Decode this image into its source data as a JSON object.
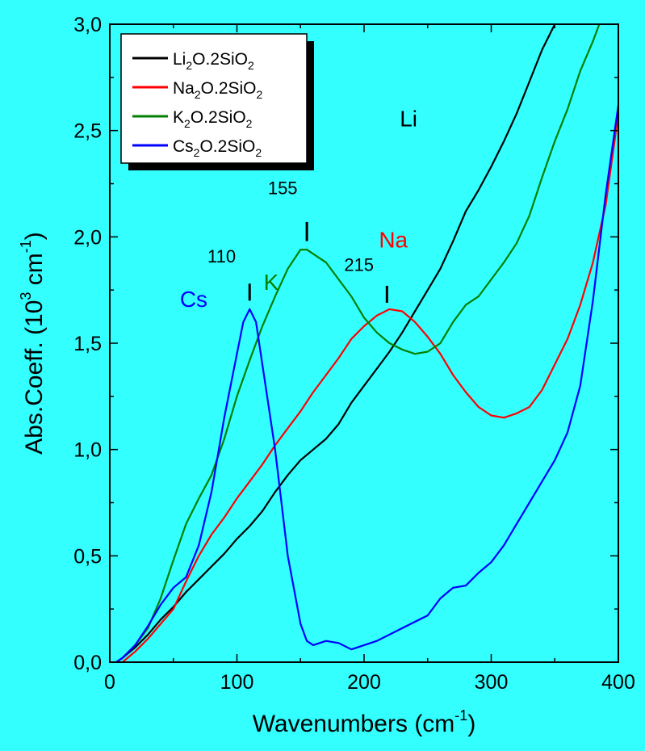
{
  "chart_data": {
    "type": "line",
    "title": "",
    "xlabel": "Wavenumbers (cm",
    "xlabel_sup": "-1",
    "xlabel_end": ")",
    "ylabel": "Abs.Coeff. (10",
    "ylabel_sup1": "3",
    "ylabel_mid": " cm",
    "ylabel_sup2": "-1",
    "ylabel_end": ")",
    "xlim": [
      0,
      400
    ],
    "ylim": [
      0,
      3.0
    ],
    "x_ticks": [
      "0",
      "100",
      "200",
      "300",
      "400"
    ],
    "y_ticks": [
      "0,0",
      "0,5",
      "1,0",
      "1,5",
      "2,0",
      "2,5",
      "3,0"
    ],
    "background_color": "#33ffff",
    "grid": false,
    "legend_position": "top-left",
    "series": [
      {
        "name": "Li2O.2SiO2",
        "legend_parts": [
          "Li",
          "2",
          "O.2SiO",
          "2"
        ],
        "color": "#000000",
        "points": [
          [
            5,
            0.0
          ],
          [
            10,
            0.02
          ],
          [
            20,
            0.07
          ],
          [
            30,
            0.13
          ],
          [
            40,
            0.2
          ],
          [
            50,
            0.26
          ],
          [
            60,
            0.33
          ],
          [
            70,
            0.39
          ],
          [
            80,
            0.45
          ],
          [
            90,
            0.51
          ],
          [
            100,
            0.58
          ],
          [
            110,
            0.64
          ],
          [
            120,
            0.71
          ],
          [
            130,
            0.8
          ],
          [
            140,
            0.88
          ],
          [
            150,
            0.95
          ],
          [
            160,
            1.0
          ],
          [
            170,
            1.05
          ],
          [
            180,
            1.12
          ],
          [
            190,
            1.22
          ],
          [
            200,
            1.3
          ],
          [
            210,
            1.38
          ],
          [
            220,
            1.46
          ],
          [
            230,
            1.55
          ],
          [
            240,
            1.65
          ],
          [
            250,
            1.75
          ],
          [
            260,
            1.85
          ],
          [
            270,
            1.98
          ],
          [
            280,
            2.12
          ],
          [
            290,
            2.22
          ],
          [
            300,
            2.33
          ],
          [
            310,
            2.45
          ],
          [
            320,
            2.58
          ],
          [
            330,
            2.73
          ],
          [
            340,
            2.88
          ],
          [
            350,
            3.0
          ]
        ]
      },
      {
        "name": "Na2O.2SiO2",
        "legend_parts": [
          "Na",
          "2",
          "O.2SiO",
          "2"
        ],
        "color": "#ff0000",
        "points": [
          [
            10,
            0.0
          ],
          [
            20,
            0.05
          ],
          [
            30,
            0.11
          ],
          [
            40,
            0.18
          ],
          [
            50,
            0.25
          ],
          [
            60,
            0.38
          ],
          [
            70,
            0.5
          ],
          [
            80,
            0.6
          ],
          [
            90,
            0.68
          ],
          [
            100,
            0.77
          ],
          [
            110,
            0.85
          ],
          [
            120,
            0.93
          ],
          [
            130,
            1.02
          ],
          [
            140,
            1.1
          ],
          [
            150,
            1.18
          ],
          [
            160,
            1.27
          ],
          [
            170,
            1.35
          ],
          [
            180,
            1.43
          ],
          [
            190,
            1.52
          ],
          [
            200,
            1.58
          ],
          [
            210,
            1.63
          ],
          [
            220,
            1.66
          ],
          [
            230,
            1.65
          ],
          [
            240,
            1.6
          ],
          [
            250,
            1.53
          ],
          [
            260,
            1.45
          ],
          [
            270,
            1.35
          ],
          [
            280,
            1.27
          ],
          [
            290,
            1.2
          ],
          [
            300,
            1.16
          ],
          [
            310,
            1.15
          ],
          [
            320,
            1.17
          ],
          [
            330,
            1.2
          ],
          [
            340,
            1.28
          ],
          [
            350,
            1.4
          ],
          [
            360,
            1.52
          ],
          [
            370,
            1.68
          ],
          [
            380,
            1.88
          ],
          [
            390,
            2.15
          ],
          [
            400,
            2.58
          ]
        ]
      },
      {
        "name": "K2O.2SiO2",
        "legend_parts": [
          "K",
          "2",
          "O.2SiO",
          "2"
        ],
        "color": "#008000",
        "points": [
          [
            5,
            0.0
          ],
          [
            10,
            0.02
          ],
          [
            20,
            0.08
          ],
          [
            30,
            0.16
          ],
          [
            40,
            0.3
          ],
          [
            50,
            0.48
          ],
          [
            60,
            0.65
          ],
          [
            70,
            0.77
          ],
          [
            80,
            0.88
          ],
          [
            90,
            1.05
          ],
          [
            100,
            1.25
          ],
          [
            110,
            1.42
          ],
          [
            120,
            1.58
          ],
          [
            130,
            1.72
          ],
          [
            140,
            1.85
          ],
          [
            150,
            1.94
          ],
          [
            155,
            1.94
          ],
          [
            160,
            1.92
          ],
          [
            170,
            1.88
          ],
          [
            180,
            1.8
          ],
          [
            190,
            1.72
          ],
          [
            200,
            1.62
          ],
          [
            210,
            1.55
          ],
          [
            220,
            1.5
          ],
          [
            230,
            1.47
          ],
          [
            240,
            1.45
          ],
          [
            250,
            1.46
          ],
          [
            260,
            1.5
          ],
          [
            270,
            1.6
          ],
          [
            280,
            1.68
          ],
          [
            290,
            1.72
          ],
          [
            300,
            1.8
          ],
          [
            310,
            1.88
          ],
          [
            320,
            1.97
          ],
          [
            330,
            2.1
          ],
          [
            340,
            2.28
          ],
          [
            350,
            2.45
          ],
          [
            360,
            2.6
          ],
          [
            370,
            2.78
          ],
          [
            380,
            2.92
          ],
          [
            385,
            3.0
          ]
        ]
      },
      {
        "name": "Cs2O.2SiO2",
        "legend_parts": [
          "Cs",
          "2",
          "O.2SiO",
          "2"
        ],
        "color": "#0000ff",
        "points": [
          [
            5,
            0.0
          ],
          [
            10,
            0.02
          ],
          [
            20,
            0.08
          ],
          [
            30,
            0.17
          ],
          [
            40,
            0.27
          ],
          [
            50,
            0.35
          ],
          [
            60,
            0.4
          ],
          [
            70,
            0.55
          ],
          [
            80,
            0.8
          ],
          [
            90,
            1.15
          ],
          [
            100,
            1.45
          ],
          [
            105,
            1.6
          ],
          [
            110,
            1.66
          ],
          [
            115,
            1.6
          ],
          [
            120,
            1.4
          ],
          [
            130,
            1.0
          ],
          [
            140,
            0.5
          ],
          [
            150,
            0.18
          ],
          [
            155,
            0.1
          ],
          [
            160,
            0.08
          ],
          [
            170,
            0.1
          ],
          [
            180,
            0.09
          ],
          [
            190,
            0.06
          ],
          [
            200,
            0.08
          ],
          [
            210,
            0.1
          ],
          [
            220,
            0.13
          ],
          [
            230,
            0.16
          ],
          [
            240,
            0.19
          ],
          [
            250,
            0.22
          ],
          [
            260,
            0.3
          ],
          [
            270,
            0.35
          ],
          [
            280,
            0.36
          ],
          [
            290,
            0.42
          ],
          [
            300,
            0.47
          ],
          [
            310,
            0.55
          ],
          [
            320,
            0.65
          ],
          [
            330,
            0.75
          ],
          [
            340,
            0.85
          ],
          [
            350,
            0.95
          ],
          [
            360,
            1.08
          ],
          [
            370,
            1.3
          ],
          [
            380,
            1.7
          ],
          [
            390,
            2.2
          ],
          [
            400,
            2.62
          ]
        ]
      }
    ],
    "annotations": [
      {
        "text": "Li",
        "x": 235,
        "y": 2.52,
        "color": "#000000"
      },
      {
        "text": "Na",
        "x": 223,
        "y": 1.95,
        "color": "#ff0000"
      },
      {
        "text": "K",
        "x": 127,
        "y": 1.75,
        "color": "#008000"
      },
      {
        "text": "Cs",
        "x": 66,
        "y": 1.67,
        "color": "#0000ff"
      },
      {
        "text": "155",
        "x": 136,
        "y": 2.2,
        "color": "#000000"
      },
      {
        "text": "110",
        "x": 88,
        "y": 1.88,
        "color": "#000000"
      },
      {
        "text": "215",
        "x": 196,
        "y": 1.84,
        "color": "#000000"
      }
    ],
    "peak_markers": [
      {
        "x": 155,
        "y_from": 2.07,
        "y_to": 1.98
      },
      {
        "x": 110,
        "y_from": 1.78,
        "y_to": 1.7
      },
      {
        "x": 218,
        "y_from": 1.77,
        "y_to": 1.69
      }
    ]
  }
}
